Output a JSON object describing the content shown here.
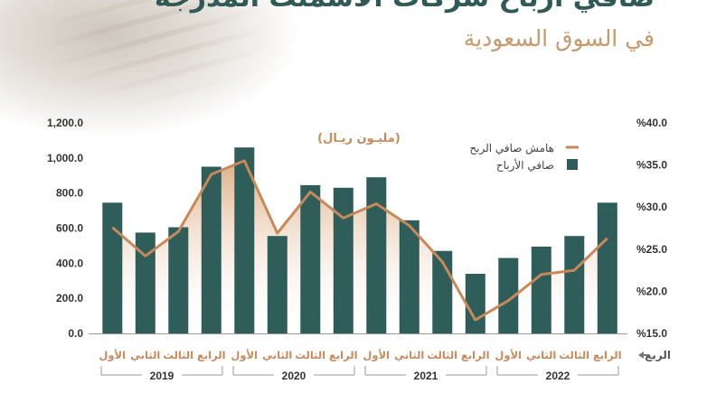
{
  "header": {
    "title": "صافي أرباح شركات الأسمنت المدرجة",
    "subtitle": "في السوق السعودية"
  },
  "chart_data": {
    "type": "bar",
    "unit_label": "(مليـون ريـال)",
    "x_axis_label": "الربع",
    "categories": [
      "الأول",
      "الثاني",
      "الثالث",
      "الرابع",
      "الأول",
      "الثاني",
      "الثالث",
      "الرابع",
      "الأول",
      "الثاني",
      "الثالث",
      "الرابع",
      "الأول",
      "الثاني",
      "الثالث",
      "الرابع"
    ],
    "years": [
      "2019",
      "2020",
      "2021",
      "2022"
    ],
    "series": [
      {
        "name": "صافي الأرباح",
        "kind": "bar",
        "axis": "left",
        "color": "#2e5d5a",
        "values": [
          745,
          575,
          605,
          950,
          1060,
          555,
          845,
          830,
          890,
          645,
          470,
          340,
          430,
          495,
          555,
          745
        ]
      },
      {
        "name": "هامش صافي الربح",
        "kind": "line",
        "axis": "right",
        "color": "#c8895a",
        "values": [
          27.6,
          24.2,
          27.1,
          33.9,
          35.5,
          26.9,
          31.8,
          28.7,
          30.4,
          27.8,
          23.5,
          16.6,
          18.9,
          22.0,
          22.5,
          26.3
        ]
      }
    ],
    "left_ticks": [
      "0.0",
      "200.0",
      "400.0",
      "600.0",
      "800.0",
      "1,000.0",
      "1,200.0"
    ],
    "right_ticks": [
      "%15.0",
      "%20.0",
      "%25.0",
      "%30.0",
      "%35.0",
      "%40.0"
    ],
    "ylim_left": [
      0,
      1200
    ],
    "ylim_right": [
      15,
      40
    ],
    "legend_position": "top-right",
    "grid": false
  },
  "colors": {
    "bar": "#2e5d5a",
    "line": "#c8895a",
    "text": "#333333",
    "muted": "#9a9a9a"
  },
  "icons": {
    "axis_arrow": "arrow-left-icon"
  }
}
